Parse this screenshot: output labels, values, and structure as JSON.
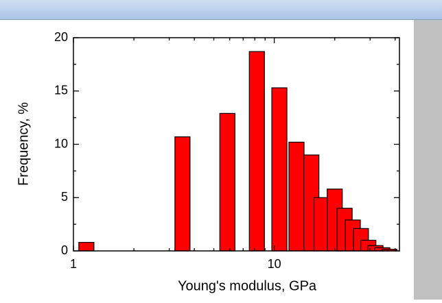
{
  "chart_data": {
    "type": "bar",
    "xlabel": "Young's modulus, GPa",
    "ylabel": "Frequency, %",
    "x": [
      1.16,
      3.49,
      5.84,
      8.19,
      10.6,
      12.9,
      15.3,
      17.2,
      20,
      22.4,
      24.6,
      27.0,
      29.4,
      31.9,
      34.5,
      37.4
    ],
    "values": [
      0.8,
      10.7,
      12.9,
      18.7,
      15.3,
      10.2,
      9.0,
      5.0,
      5.8,
      4.0,
      2.9,
      2.1,
      1.0,
      0.5,
      0.3,
      0.15
    ],
    "color": "#ff0000",
    "xscale": "log",
    "xlim": [
      1,
      42
    ],
    "xticks": [
      1,
      10
    ],
    "xminorticks": [
      2,
      3,
      4,
      5,
      6,
      7,
      8,
      9,
      20,
      30,
      40
    ],
    "ylim": [
      0,
      20
    ],
    "yticks": [
      0,
      5,
      10,
      15,
      20
    ],
    "yminorticks": [
      2.5,
      7.5,
      12.5,
      17.5
    ]
  }
}
